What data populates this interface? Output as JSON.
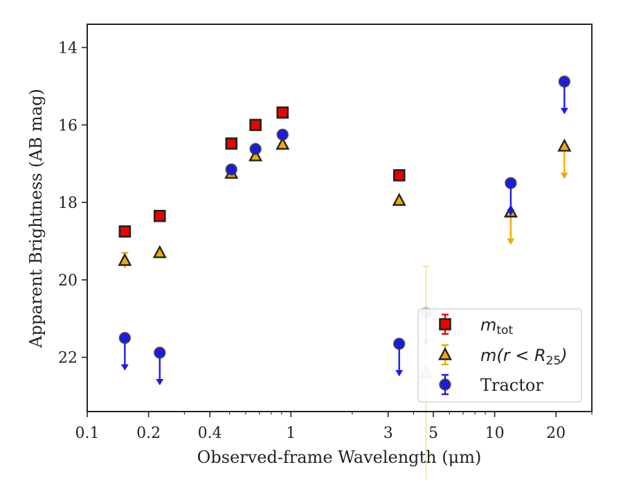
{
  "chart_data": {
    "type": "scatter",
    "xlabel": "Observed-frame Wavelength (μm)",
    "ylabel": "Apparent Brightness (AB mag)",
    "x_scale": "log",
    "xlim": [
      0.1,
      30
    ],
    "ylim": [
      23.4,
      13.4
    ],
    "y_inverted": true,
    "x_ticks": [
      0.1,
      0.2,
      0.4,
      1,
      3,
      5,
      10,
      20
    ],
    "x_tick_labels": [
      "0.1",
      "0.2",
      "0.4",
      "1",
      "3",
      "5",
      "10",
      "20"
    ],
    "y_ticks": [
      14,
      16,
      18,
      20,
      22
    ],
    "y_tick_labels": [
      "14",
      "16",
      "18",
      "20",
      "22"
    ],
    "legend_position": "lower-right",
    "series": [
      {
        "name": "m_tot",
        "legend_label": "m",
        "legend_subscript": "tot",
        "marker": "square",
        "color": "#ee0000",
        "points": [
          {
            "x": 0.153,
            "y": 18.75
          },
          {
            "x": 0.227,
            "y": 18.35
          },
          {
            "x": 0.51,
            "y": 16.48
          },
          {
            "x": 0.67,
            "y": 16.0
          },
          {
            "x": 0.91,
            "y": 15.68
          },
          {
            "x": 3.4,
            "y": 17.3
          }
        ]
      },
      {
        "name": "m(r < R25)",
        "legend_label": "m(r < R",
        "legend_subscript": "25",
        "legend_suffix": ")",
        "marker": "triangle",
        "color": "#f5a800",
        "points": [
          {
            "x": 0.153,
            "y": 19.5,
            "err": 0.2
          },
          {
            "x": 0.227,
            "y": 19.3
          },
          {
            "x": 0.51,
            "y": 17.25
          },
          {
            "x": 0.67,
            "y": 16.8
          },
          {
            "x": 0.91,
            "y": 16.5
          },
          {
            "x": 3.4,
            "y": 17.95
          },
          {
            "x": 4.6,
            "y": 22.4,
            "err": 2.75,
            "faded": true
          },
          {
            "x": 12.0,
            "y": 18.25,
            "upper_limit": true
          },
          {
            "x": 22.0,
            "y": 16.55,
            "upper_limit": true
          }
        ]
      },
      {
        "name": "Tractor",
        "marker": "circle",
        "color": "#1a1aee",
        "points": [
          {
            "x": 0.153,
            "y": 21.5,
            "upper_limit": true
          },
          {
            "x": 0.227,
            "y": 21.88,
            "upper_limit": true
          },
          {
            "x": 0.51,
            "y": 17.15
          },
          {
            "x": 0.67,
            "y": 16.62
          },
          {
            "x": 0.91,
            "y": 16.25
          },
          {
            "x": 3.4,
            "y": 21.65,
            "upper_limit": true
          },
          {
            "x": 4.6,
            "y": 20.85,
            "upper_limit": true,
            "faded": true
          },
          {
            "x": 12.0,
            "y": 17.5,
            "upper_limit": true
          },
          {
            "x": 22.0,
            "y": 14.88,
            "upper_limit": true
          }
        ]
      }
    ]
  }
}
